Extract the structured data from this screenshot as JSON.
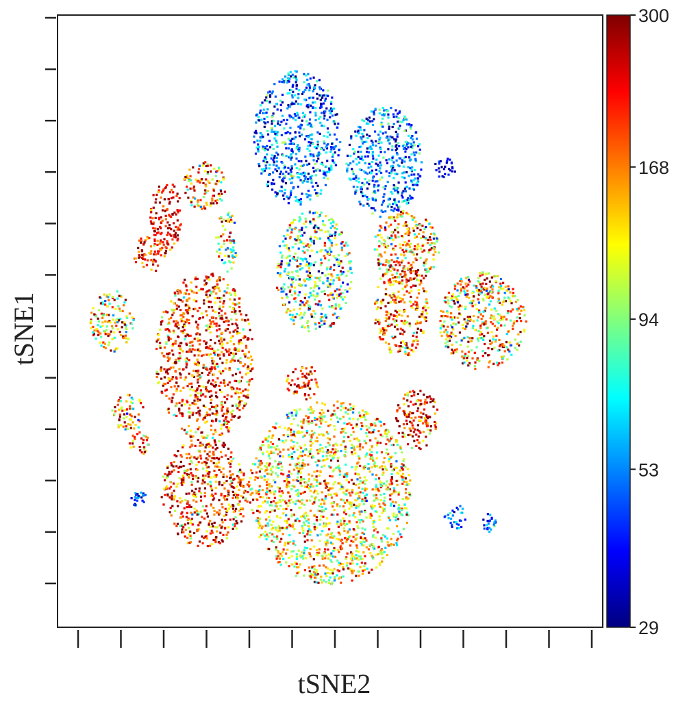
{
  "chart_data": {
    "type": "scatter",
    "title": "",
    "xlabel": "tSNE2",
    "ylabel": "tSNE1",
    "grid": false,
    "xticks_labeled": false,
    "yticks_labeled": false,
    "x_tick_count": 13,
    "y_tick_count": 12,
    "xlim": [
      0,
      100
    ],
    "ylim": [
      0,
      100
    ],
    "color_scale": {
      "name": "jet",
      "tick_labels": [
        "300",
        "168",
        "94",
        "53",
        "29"
      ],
      "tick_values": [
        300,
        168,
        94,
        53,
        29
      ],
      "range": [
        29,
        300
      ],
      "scale": "log",
      "colors": [
        "#00007f",
        "#0000ff",
        "#007fff",
        "#00ffff",
        "#7fff7f",
        "#ffff00",
        "#ff7f00",
        "#ff0000",
        "#7f0000"
      ]
    },
    "clusters": [
      {
        "x": 44,
        "y": 80,
        "rx": 8,
        "ry": 11,
        "value": 48,
        "spread": 0.25
      },
      {
        "x": 60,
        "y": 76,
        "rx": 7,
        "ry": 9,
        "value": 50,
        "spread": 0.25
      },
      {
        "x": 71,
        "y": 75,
        "rx": 2,
        "ry": 2,
        "value": 35,
        "spread": 0.1
      },
      {
        "x": 27,
        "y": 72,
        "rx": 4,
        "ry": 4,
        "value": 165,
        "spread": 0.35
      },
      {
        "x": 20,
        "y": 67,
        "rx": 3,
        "ry": 6,
        "value": 230,
        "spread": 0.15
      },
      {
        "x": 17,
        "y": 61,
        "rx": 3,
        "ry": 3,
        "value": 195,
        "spread": 0.2
      },
      {
        "x": 31,
        "y": 63,
        "rx": 2,
        "ry": 5,
        "value": 120,
        "spread": 0.4
      },
      {
        "x": 47,
        "y": 58,
        "rx": 7,
        "ry": 10,
        "value": 95,
        "spread": 0.45
      },
      {
        "x": 64,
        "y": 62,
        "rx": 6,
        "ry": 6,
        "value": 150,
        "spread": 0.35
      },
      {
        "x": 63,
        "y": 52,
        "rx": 5,
        "ry": 8,
        "value": 185,
        "spread": 0.3
      },
      {
        "x": 78,
        "y": 50,
        "rx": 8,
        "ry": 8,
        "value": 140,
        "spread": 0.4
      },
      {
        "x": 10,
        "y": 50,
        "rx": 4,
        "ry": 5,
        "value": 150,
        "spread": 0.35
      },
      {
        "x": 27,
        "y": 44,
        "rx": 9,
        "ry": 14,
        "value": 200,
        "spread": 0.3
      },
      {
        "x": 45,
        "y": 40,
        "rx": 3,
        "ry": 3,
        "value": 220,
        "spread": 0.2
      },
      {
        "x": 66,
        "y": 34,
        "rx": 4,
        "ry": 5,
        "value": 210,
        "spread": 0.25
      },
      {
        "x": 13,
        "y": 35,
        "rx": 3,
        "ry": 3,
        "value": 140,
        "spread": 0.35
      },
      {
        "x": 15,
        "y": 30,
        "rx": 2,
        "ry": 2,
        "value": 200,
        "spread": 0.25
      },
      {
        "x": 15,
        "y": 21,
        "rx": 1.5,
        "ry": 1.5,
        "value": 45,
        "spread": 0.15
      },
      {
        "x": 27,
        "y": 22,
        "rx": 8,
        "ry": 9,
        "value": 205,
        "spread": 0.3
      },
      {
        "x": 50,
        "y": 22,
        "rx": 15,
        "ry": 15,
        "value": 130,
        "spread": 0.3
      },
      {
        "x": 73,
        "y": 18,
        "rx": 2,
        "ry": 2,
        "value": 50,
        "spread": 0.2
      },
      {
        "x": 79,
        "y": 17,
        "rx": 1.5,
        "ry": 1.5,
        "value": 45,
        "spread": 0.2
      }
    ]
  }
}
